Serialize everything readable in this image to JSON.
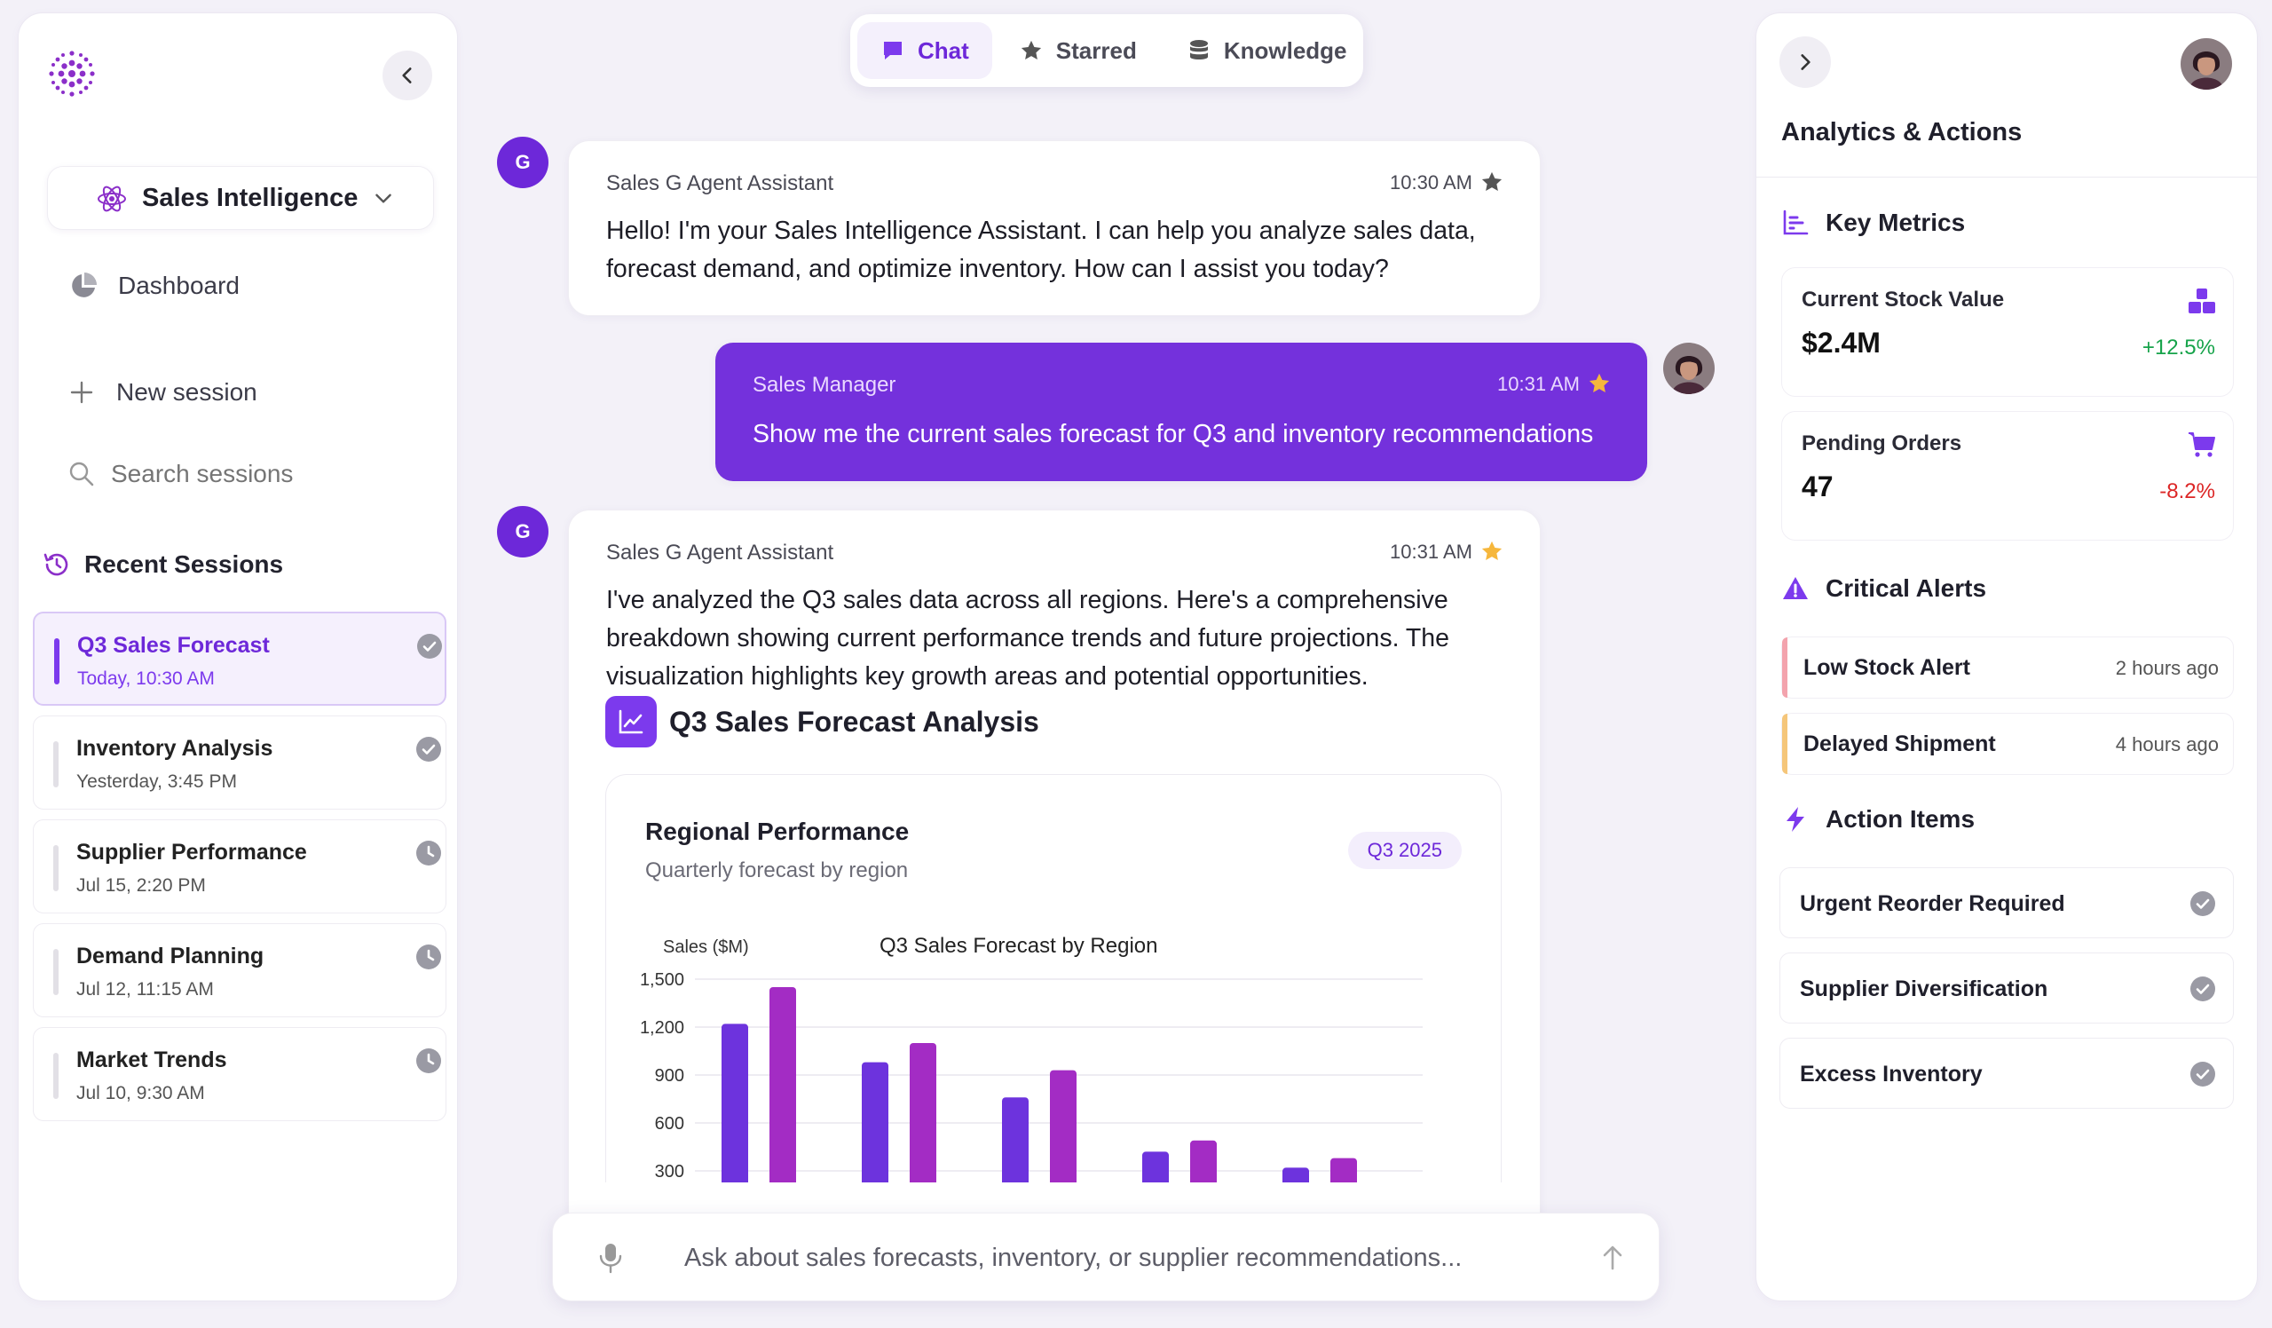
{
  "brand": {
    "accent": "#7c3aed",
    "accent_dark": "#6d28d9",
    "user_bubble": "#7431dc",
    "bar_a": "#6d33dd",
    "bar_b": "#a32cc4"
  },
  "sidebar": {
    "workspace_label": "Sales Intelligence",
    "dashboard_label": "Dashboard",
    "new_session_label": "New session",
    "search_placeholder": "Search sessions",
    "recent_title": "Recent Sessions",
    "sessions": [
      {
        "title": "Q3 Sales Forecast",
        "time": "Today, 10:30 AM",
        "status": "check-icon",
        "active": true
      },
      {
        "title": "Inventory Analysis",
        "time": "Yesterday, 3:45 PM",
        "status": "check-icon",
        "active": false
      },
      {
        "title": "Supplier Performance",
        "time": "Jul 15, 2:20 PM",
        "status": "clock-icon",
        "active": false
      },
      {
        "title": "Demand Planning",
        "time": "Jul 12, 11:15 AM",
        "status": "clock-icon",
        "active": false
      },
      {
        "title": "Market Trends",
        "time": "Jul 10, 9:30 AM",
        "status": "clock-icon",
        "active": false
      }
    ]
  },
  "tabs": [
    {
      "label": "Chat",
      "icon": "chat-icon",
      "active": true
    },
    {
      "label": "Starred",
      "icon": "star-icon",
      "active": false
    },
    {
      "label": "Knowledge",
      "icon": "database-icon",
      "active": false
    }
  ],
  "messages": [
    {
      "avatar": "G",
      "sender": "Sales G Agent Assistant",
      "time": "10:30 AM",
      "starred": false,
      "text": "Hello! I'm your Sales Intelligence Assistant. I can help you analyze sales data, forecast demand, and optimize inventory. How can I assist you today?"
    },
    {
      "sender": "Sales Manager",
      "time": "10:31 AM",
      "starred": true,
      "text": "Show me the current sales forecast for Q3 and inventory recommendations"
    },
    {
      "avatar": "G",
      "sender": "Sales G Agent Assistant",
      "time": "10:31 AM",
      "starred": true,
      "text": "I've analyzed the Q3 sales data across all regions. Here's a comprehensive breakdown showing current performance trends and future projections. The visualization highlights key growth areas and potential opportunities."
    }
  ],
  "analysis": {
    "heading": "Q3 Sales Forecast Analysis",
    "card_title": "Regional Performance",
    "card_subtitle": "Quarterly forecast by region",
    "badge": "Q3 2025"
  },
  "chart_data": {
    "type": "bar",
    "title": "Q3 Sales Forecast by Region",
    "ylabel": "Sales ($M)",
    "xlabel": "",
    "ylim": [
      0,
      1500
    ],
    "yticks": [
      300,
      600,
      900,
      1200,
      1500
    ],
    "ytick_labels": [
      "300",
      "600",
      "900",
      "1,200",
      "1,500"
    ],
    "categories": [
      "",
      "",
      "",
      "",
      ""
    ],
    "series": [
      {
        "values": [
          1220,
          980,
          760,
          420,
          320
        ]
      },
      {
        "values": [
          1450,
          1100,
          930,
          490,
          380
        ]
      }
    ],
    "grid": true,
    "legend": "none"
  },
  "input": {
    "placeholder": "Ask about sales forecasts, inventory, or supplier recommendations..."
  },
  "right": {
    "title": "Analytics & Actions",
    "key_metrics_title": "Key Metrics",
    "metrics": [
      {
        "label": "Current Stock Value",
        "value": "$2.4M",
        "change": "+12.5%",
        "change_color": "#16a34a",
        "icon": "boxes-icon"
      },
      {
        "label": "Pending Orders",
        "value": "47",
        "change": "-8.2%",
        "change_color": "#dc2626",
        "icon": "cart-icon"
      }
    ],
    "alerts_title": "Critical Alerts",
    "alerts": [
      {
        "title": "Low Stock Alert",
        "time": "2 hours ago",
        "color": "#f3a3ad"
      },
      {
        "title": "Delayed Shipment",
        "time": "4 hours ago",
        "color": "#f5c67a"
      }
    ],
    "actions_title": "Action Items",
    "actions": [
      {
        "title": "Urgent Reorder Required"
      },
      {
        "title": "Supplier Diversification"
      },
      {
        "title": "Excess Inventory"
      }
    ]
  }
}
